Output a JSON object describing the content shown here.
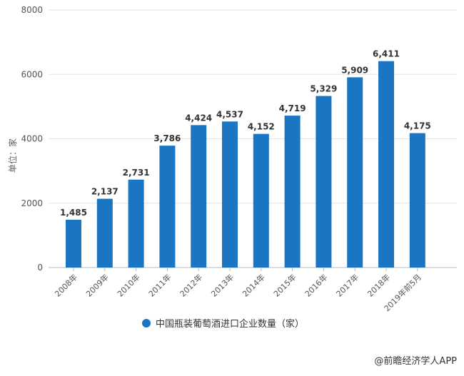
{
  "chart_data": {
    "type": "bar",
    "title": "",
    "ylabel": "单位：家",
    "xlabel": "",
    "ylim": [
      0,
      8000
    ],
    "yticks": [
      0,
      2000,
      4000,
      6000,
      8000
    ],
    "grid": true,
    "legend_placement": "bottom",
    "categories": [
      "2008年",
      "2009年",
      "2010年",
      "2011年",
      "2012年",
      "2013年",
      "2014年",
      "2015年",
      "2016年",
      "2017年",
      "2018年",
      "2019年前5月"
    ],
    "series": [
      {
        "name": "中国瓶装葡萄酒进口企业数量（家）",
        "color": "#1a75c2",
        "values": [
          1485,
          2137,
          2731,
          3786,
          4424,
          4537,
          4152,
          4719,
          5329,
          5909,
          6411,
          4175
        ],
        "labels": [
          "1,485",
          "2,137",
          "2,731",
          "3,786",
          "4,424",
          "4,537",
          "4,152",
          "4,719",
          "5,329",
          "5,909",
          "6,411",
          "4,175"
        ]
      }
    ]
  },
  "source": "@前瞻经济学人APP"
}
